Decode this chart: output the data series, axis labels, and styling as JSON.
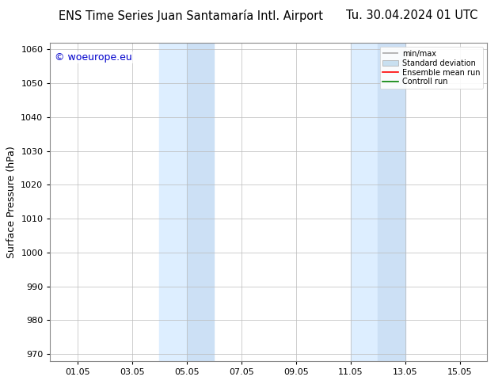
{
  "title_left": "ENS Time Series Juan Santamaría Intl. Airport",
  "title_right": "Tu. 30.04.2024 01 UTC",
  "ylabel": "Surface Pressure (hPa)",
  "ylim": [
    968,
    1062
  ],
  "yticks": [
    970,
    980,
    990,
    1000,
    1010,
    1020,
    1030,
    1040,
    1050,
    1060
  ],
  "xtick_labels": [
    "01.05",
    "03.05",
    "05.05",
    "07.05",
    "09.05",
    "11.05",
    "13.05",
    "15.05"
  ],
  "xtick_positions": [
    1,
    3,
    5,
    7,
    9,
    11,
    13,
    15
  ],
  "xlim": [
    0,
    16
  ],
  "shaded_regions": [
    {
      "x_start": 4,
      "x_end": 5,
      "color": "#ddeeff"
    },
    {
      "x_start": 5,
      "x_end": 6,
      "color": "#cce0f5"
    },
    {
      "x_start": 11,
      "x_end": 12,
      "color": "#ddeeff"
    },
    {
      "x_start": 12,
      "x_end": 13,
      "color": "#cce0f5"
    }
  ],
  "watermark_text": "© woeurope.eu",
  "watermark_color": "#0000cc",
  "legend_entries": [
    {
      "label": "min/max",
      "color": "#aaaaaa",
      "lw": 1.2
    },
    {
      "label": "Standard deviation",
      "color": "#c8dff0",
      "lw": 6
    },
    {
      "label": "Ensemble mean run",
      "color": "#ff0000",
      "lw": 1.2
    },
    {
      "label": "Controll run",
      "color": "#008000",
      "lw": 1.2
    }
  ],
  "grid_color": "#bbbbbb",
  "background_color": "#ffffff",
  "plot_bg_color": "#ffffff",
  "title_fontsize": 10.5,
  "tick_fontsize": 8,
  "ylabel_fontsize": 9,
  "watermark_fontsize": 9
}
